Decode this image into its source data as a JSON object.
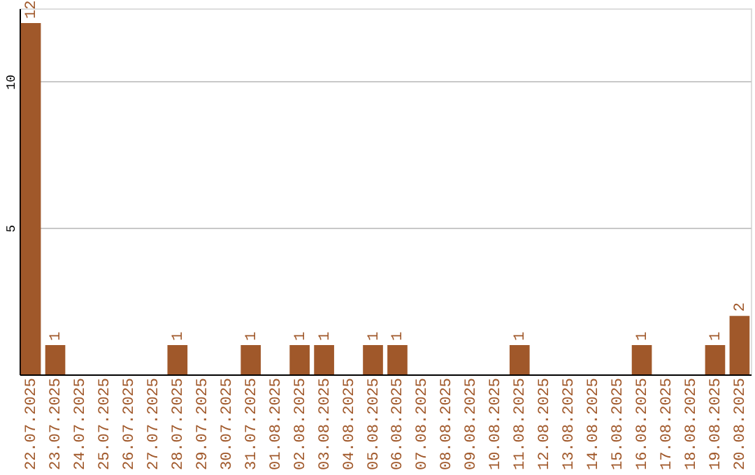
{
  "chart_data": {
    "type": "bar",
    "categories": [
      "22.07.2025",
      "23.07.2025",
      "24.07.2025",
      "25.07.2025",
      "26.07.2025",
      "27.07.2025",
      "28.07.2025",
      "29.07.2025",
      "30.07.2025",
      "31.07.2025",
      "01.08.2025",
      "02.08.2025",
      "03.08.2025",
      "04.08.2025",
      "05.08.2025",
      "06.08.2025",
      "07.08.2025",
      "08.08.2025",
      "09.08.2025",
      "10.08.2025",
      "11.08.2025",
      "12.08.2025",
      "13.08.2025",
      "14.08.2025",
      "15.08.2025",
      "16.08.2025",
      "17.08.2025",
      "18.08.2025",
      "19.08.2025",
      "20.08.2025"
    ],
    "values": [
      12,
      1,
      0,
      0,
      0,
      0,
      1,
      0,
      0,
      1,
      0,
      1,
      1,
      0,
      1,
      1,
      0,
      0,
      0,
      0,
      1,
      0,
      0,
      0,
      0,
      1,
      0,
      0,
      1,
      2
    ],
    "value_labels": [
      "12",
      "1",
      null,
      null,
      null,
      null,
      "1",
      null,
      null,
      "1",
      null,
      "1",
      "1",
      null,
      "1",
      "1",
      null,
      null,
      null,
      null,
      "1",
      null,
      null,
      null,
      null,
      "1",
      null,
      null,
      "1",
      "2"
    ],
    "color": "#a0582a",
    "ylim": [
      0,
      12.5
    ],
    "yticks": [
      5,
      10
    ],
    "grid": "y"
  }
}
